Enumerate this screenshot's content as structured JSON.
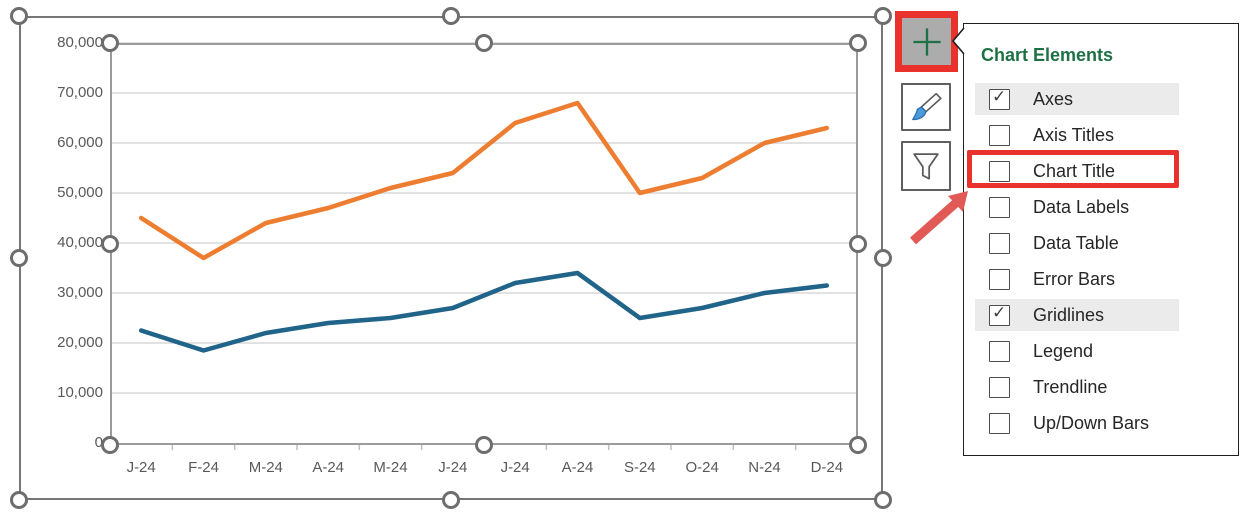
{
  "chart_data": {
    "type": "line",
    "title": "",
    "xlabel": "",
    "ylabel": "",
    "categories": [
      "J-24",
      "F-24",
      "M-24",
      "A-24",
      "M-24",
      "J-24",
      "J-24",
      "A-24",
      "S-24",
      "O-24",
      "N-24",
      "D-24"
    ],
    "series": [
      {
        "name": "orange-series",
        "color": "#ED7D31",
        "values": [
          45000,
          37000,
          44000,
          47000,
          51000,
          54000,
          64000,
          68000,
          50000,
          53000,
          60000,
          63000
        ]
      },
      {
        "name": "blue-series",
        "color": "#21648A",
        "values": [
          22500,
          18500,
          22000,
          24000,
          25000,
          27000,
          32000,
          34000,
          25000,
          27000,
          30000,
          31500
        ]
      }
    ],
    "ylim": [
      0,
      80000
    ],
    "ytick_step": 10000,
    "ytick_labels_top_down": [
      "80,000",
      "70,000",
      "60,000",
      "50,000",
      "40,000",
      "30,000",
      "20,000",
      "10,000",
      "0"
    ],
    "grid": true,
    "legend": "none",
    "gridline_color": "#d9d9d9",
    "tick_color": "#bfbfbf",
    "axis_text_color": "#595959"
  },
  "toolbar": {
    "buttons": [
      {
        "id": "chart-elements",
        "icon": "plus-icon",
        "highlighted": true
      },
      {
        "id": "chart-styles",
        "icon": "brush-icon",
        "highlighted": false
      },
      {
        "id": "chart-filters",
        "icon": "funnel-icon",
        "highlighted": false
      }
    ],
    "plus_color": "#1e7145",
    "plus_bg": "#acacac",
    "highlight_color": "#e8322b"
  },
  "panel": {
    "title": "Chart Elements",
    "title_color": "#1e7145",
    "items": [
      {
        "label": "Axes",
        "checked": true,
        "highlighted": true,
        "red_box": false
      },
      {
        "label": "Axis Titles",
        "checked": false,
        "highlighted": false,
        "red_box": false
      },
      {
        "label": "Chart Title",
        "checked": false,
        "highlighted": false,
        "red_box": true
      },
      {
        "label": "Data Labels",
        "checked": false,
        "highlighted": false,
        "red_box": false
      },
      {
        "label": "Data Table",
        "checked": false,
        "highlighted": false,
        "red_box": false
      },
      {
        "label": "Error Bars",
        "checked": false,
        "highlighted": false,
        "red_box": false
      },
      {
        "label": "Gridlines",
        "checked": true,
        "highlighted": true,
        "red_box": false
      },
      {
        "label": "Legend",
        "checked": false,
        "highlighted": false,
        "red_box": false
      },
      {
        "label": "Trendline",
        "checked": false,
        "highlighted": false,
        "red_box": false
      },
      {
        "label": "Up/Down Bars",
        "checked": false,
        "highlighted": false,
        "red_box": false
      }
    ]
  },
  "annotations": {
    "arrow_color": "#e15a55",
    "box_color": "#e8322b"
  }
}
